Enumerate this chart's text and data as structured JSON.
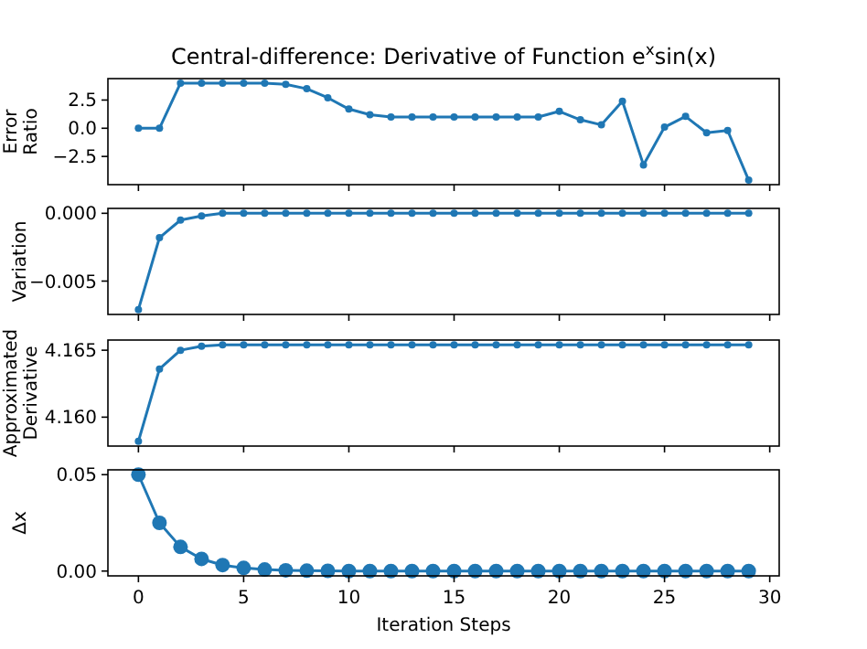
{
  "chart_data": [
    {
      "type": "line",
      "title": "Central-difference: Derivative of Function e$^{x}$sin(x)",
      "ylabel": "Error\nRatio",
      "marker": "circle",
      "tick_labels": "y",
      "xlim": [
        -1.45,
        30.45
      ],
      "ylim": [
        -5.0,
        4.4
      ],
      "yticks": [
        {
          "value": 2.5,
          "label": "2.5"
        },
        {
          "value": 0,
          "label": "0.0"
        },
        {
          "value": -2.5,
          "label": "−2.5"
        }
      ],
      "x": [
        0,
        1,
        2,
        3,
        4,
        5,
        6,
        7,
        8,
        9,
        10,
        11,
        12,
        13,
        14,
        15,
        16,
        17,
        18,
        19,
        20,
        21,
        22,
        23,
        24,
        25,
        26,
        27,
        28,
        29
      ],
      "series": [
        {
          "color": "#1f77b4",
          "values": [
            0,
            0,
            4.0,
            4.0,
            4.0,
            4.0,
            4.0,
            3.9,
            3.5,
            2.7,
            1.7,
            1.2,
            1.0,
            1.0,
            1.0,
            1.0,
            1.0,
            1.0,
            1.0,
            1.0,
            1.5,
            0.75,
            0.3,
            2.4,
            -3.25,
            0.1,
            1.05,
            -0.4,
            -0.2,
            -4.6
          ]
        }
      ]
    },
    {
      "type": "line",
      "ylabel": "Variation",
      "marker": "circle",
      "tick_labels": "y",
      "xlim": [
        -1.45,
        30.45
      ],
      "ylim": [
        -0.00746,
        0.00036
      ],
      "yticks": [
        {
          "value": 0,
          "label": "0.000"
        },
        {
          "value": -0.005,
          "label": "−0.005"
        }
      ],
      "x": [
        0,
        1,
        2,
        3,
        4,
        5,
        6,
        7,
        8,
        9,
        10,
        11,
        12,
        13,
        14,
        15,
        16,
        17,
        18,
        19,
        20,
        21,
        22,
        23,
        24,
        25,
        26,
        27,
        28,
        29
      ],
      "series": [
        {
          "color": "#1f77b4",
          "values": [
            -0.0071,
            -0.0018,
            -0.0005,
            -0.0002,
            0,
            0,
            0,
            0,
            0,
            0,
            0,
            0,
            0,
            0,
            0,
            0,
            0,
            0,
            0,
            0,
            0,
            0,
            0,
            0,
            0,
            0,
            0,
            0,
            0,
            0
          ]
        }
      ]
    },
    {
      "type": "line",
      "ylabel": "Approximated\nDerivative",
      "marker": "circle",
      "tick_labels": "y",
      "xlim": [
        -1.45,
        30.45
      ],
      "ylim": [
        4.15784,
        4.16576
      ],
      "yticks": [
        {
          "value": 4.165,
          "label": "4.165"
        },
        {
          "value": 4.16,
          "label": "4.160"
        }
      ],
      "x": [
        0,
        1,
        2,
        3,
        4,
        5,
        6,
        7,
        8,
        9,
        10,
        11,
        12,
        13,
        14,
        15,
        16,
        17,
        18,
        19,
        20,
        21,
        22,
        23,
        24,
        25,
        26,
        27,
        28,
        29
      ],
      "series": [
        {
          "color": "#1f77b4",
          "values": [
            4.1582,
            4.1636,
            4.165,
            4.1653,
            4.1654,
            4.1654,
            4.1654,
            4.1654,
            4.1654,
            4.1654,
            4.1654,
            4.1654,
            4.1654,
            4.1654,
            4.1654,
            4.1654,
            4.1654,
            4.1654,
            4.1654,
            4.1654,
            4.1654,
            4.1654,
            4.1654,
            4.1654,
            4.1654,
            4.1654,
            4.1654,
            4.1654,
            4.1654,
            4.1654
          ]
        }
      ]
    },
    {
      "type": "line",
      "ylabel": "Δx",
      "xlabel": "Iteration Steps",
      "marker": "circle",
      "xlim": [
        -1.45,
        30.45
      ],
      "xticks": [
        0,
        5,
        10,
        15,
        20,
        25,
        30
      ],
      "ylim": [
        -0.0025,
        0.0525
      ],
      "yticks": [
        {
          "value": 0,
          "label": "0.00"
        },
        {
          "value": 0.05,
          "label": "0.05"
        }
      ],
      "x": [
        0,
        1,
        2,
        3,
        4,
        5,
        6,
        7,
        8,
        9,
        10,
        11,
        12,
        13,
        14,
        15,
        16,
        17,
        18,
        19,
        20,
        21,
        22,
        23,
        24,
        25,
        26,
        27,
        28,
        29
      ],
      "series": [
        {
          "color": "#1f77b4",
          "values": [
            0.05,
            0.025,
            0.0125,
            0.0063,
            0.0031,
            0.0016,
            0.0008,
            0.0004,
            0.0002,
            0.0001,
            0,
            0,
            0,
            0,
            0,
            0,
            0,
            0,
            0,
            0,
            0,
            0,
            0,
            0,
            0,
            0,
            0,
            0,
            0,
            0
          ]
        }
      ]
    }
  ]
}
